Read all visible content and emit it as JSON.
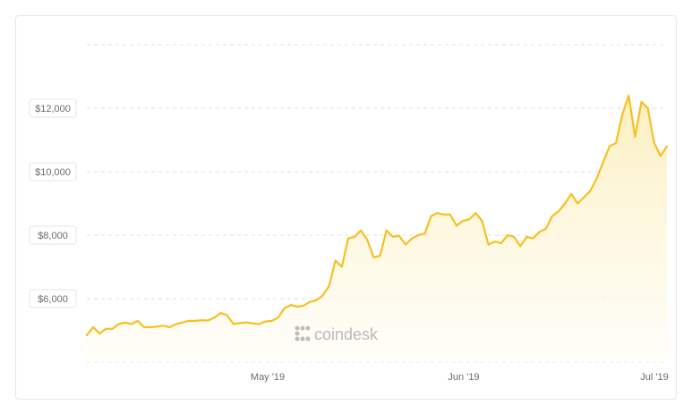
{
  "chart_data": {
    "type": "area",
    "title": "",
    "xlabel": "",
    "ylabel": "",
    "x_ticks": [
      "May '19",
      "Jun '19",
      "Jul '19"
    ],
    "y_ticks": [
      "$6,000",
      "$8,000",
      "$10,000",
      "$12,000"
    ],
    "y_tick_values": [
      6000,
      8000,
      10000,
      12000
    ],
    "ylim": [
      4000,
      14000
    ],
    "grid": true,
    "line_color": "#f6c020",
    "area_color": "#fdf6d8",
    "series": [
      {
        "values": [
          4850,
          5100,
          4900,
          5050,
          5050,
          5200,
          5250,
          5200,
          5300,
          5100,
          5100,
          5120,
          5150,
          5100,
          5200,
          5250,
          5300,
          5300,
          5320,
          5310,
          5400,
          5550,
          5480,
          5200,
          5230,
          5250,
          5220,
          5200,
          5280,
          5300,
          5400,
          5700,
          5800,
          5750,
          5780,
          5900,
          5950,
          6100,
          6400,
          7200,
          7000,
          7900,
          7950,
          8150,
          7850,
          7300,
          7350,
          8150,
          7950,
          7980,
          7700,
          7900,
          8000,
          8050,
          8600,
          8700,
          8650,
          8650,
          8300,
          8450,
          8500,
          8700,
          8450,
          7700,
          7800,
          7750,
          8000,
          7950,
          7650,
          7950,
          7900,
          8100,
          8200,
          8600,
          8750,
          9000,
          9300,
          9000,
          9200,
          9400,
          9800,
          10300,
          10800,
          10900,
          11800,
          12400,
          11100,
          12200,
          12000,
          10900,
          10500,
          10800
        ]
      }
    ]
  },
  "watermark": {
    "text": "coindesk",
    "icon": "coindesk-logo-icon"
  }
}
